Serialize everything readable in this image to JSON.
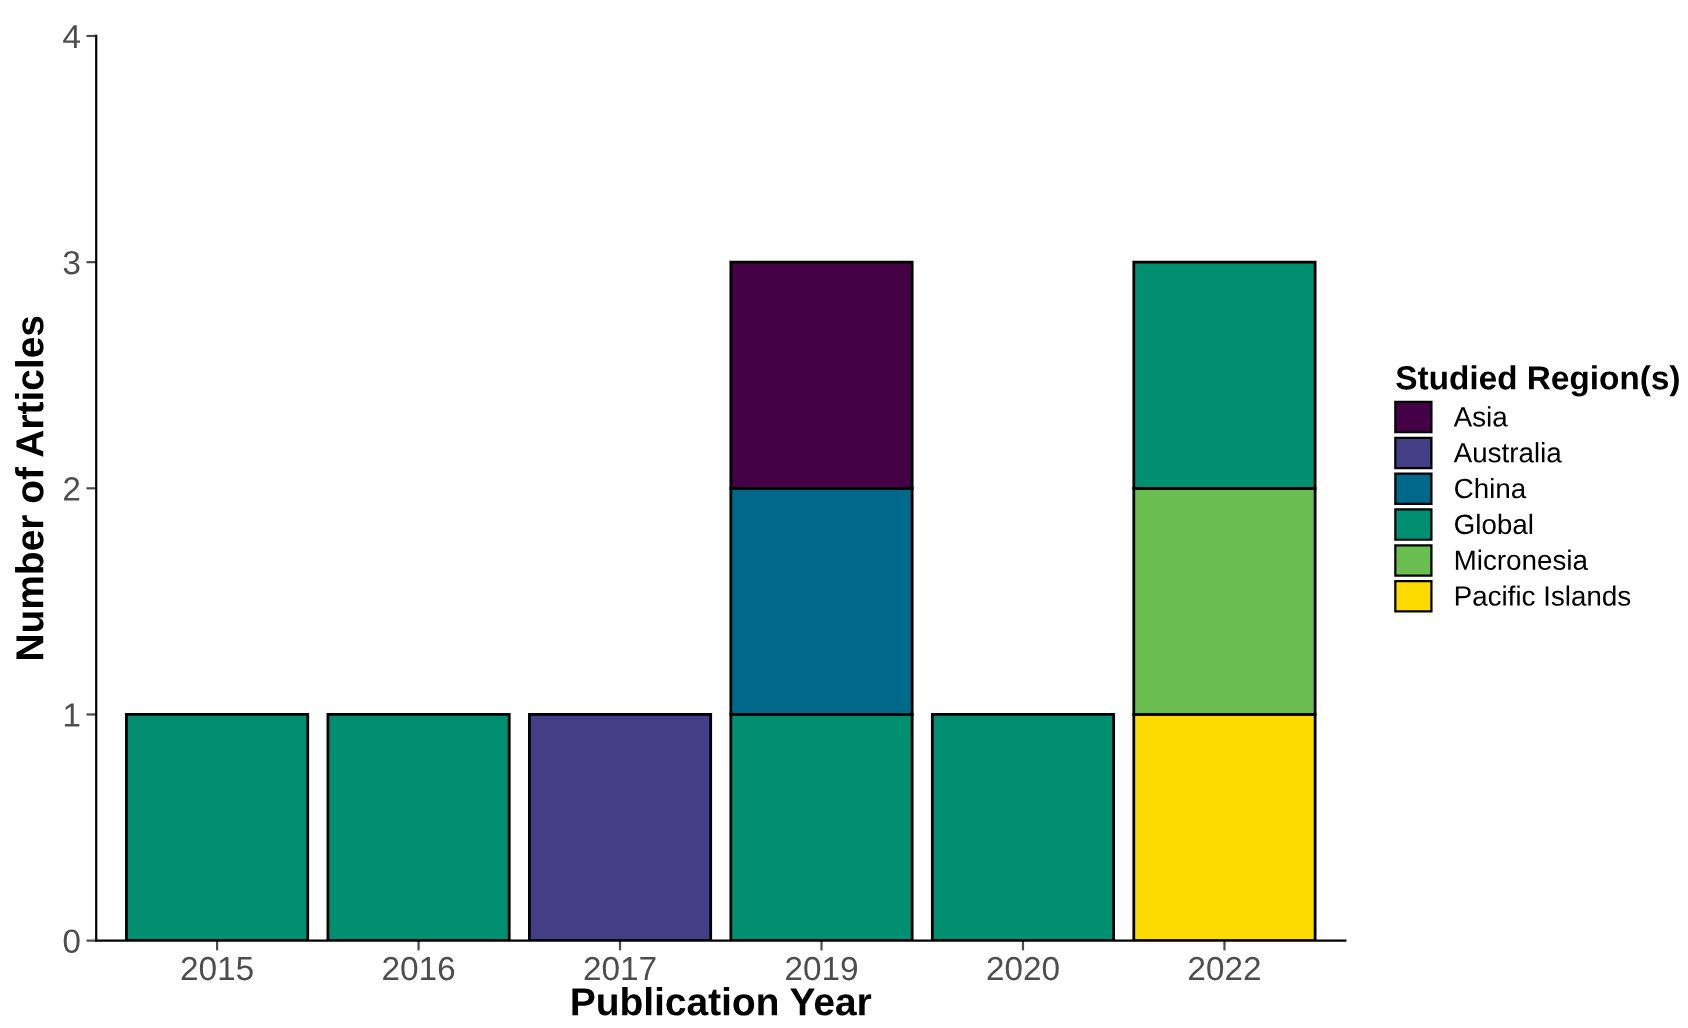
{
  "chart_data": {
    "type": "bar",
    "stacked": true,
    "xlabel": "Publication Year",
    "ylabel": "Number of Articles",
    "legend_title": "Studied Region(s)",
    "legend": "right",
    "grid": false,
    "categories": [
      "2015",
      "2016",
      "2017",
      "2019",
      "2020",
      "2022"
    ],
    "series": [
      {
        "name": "Pacific Islands",
        "color": "#fddb00",
        "values": [
          null,
          null,
          null,
          null,
          null,
          1
        ]
      },
      {
        "name": "Micronesia",
        "color": "#6abd4f",
        "values": [
          null,
          null,
          null,
          null,
          null,
          1
        ]
      },
      {
        "name": "Global",
        "color": "#008f70",
        "values": [
          1,
          1,
          null,
          1,
          1,
          1
        ]
      },
      {
        "name": "China",
        "color": "#00698b",
        "values": [
          null,
          null,
          null,
          1,
          null,
          null
        ]
      },
      {
        "name": "Australia",
        "color": "#433e85",
        "values": [
          null,
          null,
          1,
          null,
          null,
          null
        ]
      },
      {
        "name": "Asia",
        "color": "#440145",
        "values": [
          null,
          null,
          null,
          1,
          null,
          null
        ]
      }
    ],
    "ylim": [
      0,
      4
    ],
    "yticks": [
      0,
      1,
      2,
      3,
      4
    ]
  }
}
